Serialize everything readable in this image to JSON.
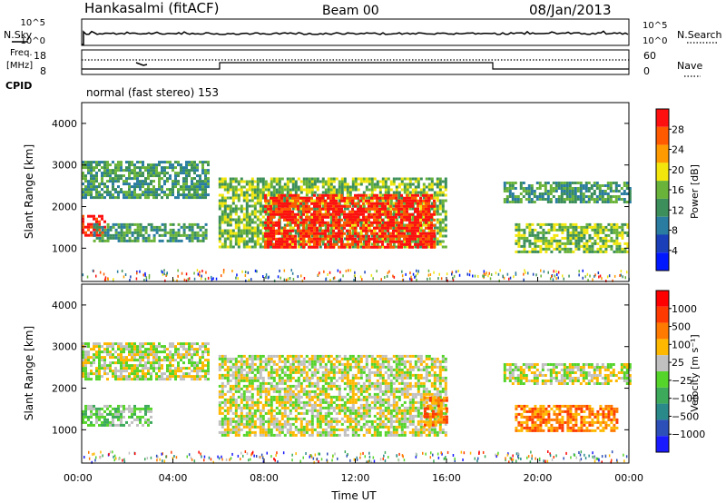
{
  "header": {
    "station": "Hankasalmi (fitACF)",
    "beam": "Beam 00",
    "date": "08/Jan/2013"
  },
  "status_panels": {
    "nsky_label": "N.Sky",
    "nsearch_label": "N.Search",
    "noise_ticks": [
      "10^5",
      "10^0"
    ],
    "freq_label_line1": "Freq.",
    "freq_label_line2": "[MHz]",
    "freq_ticks": [
      "18",
      "8"
    ],
    "nave_label": "Nave",
    "nave_ticks": [
      "60",
      "0"
    ],
    "cpid_label": "CPID",
    "cpid_text": "normal (fast stereo) 153"
  },
  "colors": {
    "power": [
      "#0018ff",
      "#1a3fb8",
      "#2a7da0",
      "#3c8f5a",
      "#6ab33a",
      "#f2e60c",
      "#ff9a00",
      "#ff5a00",
      "#ff1010"
    ],
    "velocity": [
      "#1a1aff",
      "#2c4fb8",
      "#2a8a8a",
      "#3caa5a",
      "#55d42a",
      "#c0c0c0",
      "#ffb800",
      "#ff7a00",
      "#ff3a00",
      "#ff0000"
    ]
  },
  "chart_data": [
    {
      "type": "heatmap",
      "name_panel": "power",
      "ylabel": "Slant Range [km]",
      "ylim": [
        200,
        4500
      ],
      "yticks": [
        1000,
        2000,
        3000,
        4000
      ],
      "xlim": [
        0,
        24
      ],
      "colorbar_label": "Power [dB]",
      "colorbar_ticks": [
        "28",
        "24",
        "20",
        "16",
        "12",
        "8",
        "4"
      ],
      "echo_regions": [
        {
          "t0": 0.0,
          "t1": 5.5,
          "r0": 2200,
          "r1": 3100,
          "level": 3
        },
        {
          "t0": 0.0,
          "t1": 1.0,
          "r0": 1300,
          "r1": 1800,
          "level": 8
        },
        {
          "t0": 0.5,
          "t1": 5.5,
          "r0": 1200,
          "r1": 1600,
          "level": 3
        },
        {
          "t0": 6.0,
          "t1": 16.0,
          "r0": 1000,
          "r1": 2700,
          "level": 4
        },
        {
          "t0": 8.0,
          "t1": 15.5,
          "r0": 1000,
          "r1": 2300,
          "level": 8
        },
        {
          "t0": 18.5,
          "t1": 24.0,
          "r0": 2100,
          "r1": 2600,
          "level": 3
        },
        {
          "t0": 19.0,
          "t1": 24.0,
          "r0": 900,
          "r1": 1600,
          "level": 4
        }
      ]
    },
    {
      "type": "heatmap",
      "name_panel": "velocity",
      "ylabel": "Slant Range [km]",
      "ylim": [
        200,
        4500
      ],
      "yticks": [
        1000,
        2000,
        3000,
        4000
      ],
      "xlim": [
        0,
        24
      ],
      "xticks": [
        "00:00",
        "04:00",
        "08:00",
        "12:00",
        "16:00",
        "20:00",
        "00:00"
      ],
      "xlabel": "Time UT",
      "colorbar_label": "Velocity [m s⁻¹]",
      "colorbar_ticks": [
        "1000",
        "500",
        "100",
        "25",
        "−25",
        "−100",
        "−500",
        "−1000"
      ],
      "echo_regions": [
        {
          "t0": 0.0,
          "t1": 5.5,
          "r0": 2200,
          "r1": 3100,
          "level": 5
        },
        {
          "t0": 0.0,
          "t1": 3.0,
          "r0": 1100,
          "r1": 1600,
          "level": 4
        },
        {
          "t0": 6.0,
          "t1": 16.0,
          "r0": 900,
          "r1": 2800,
          "level": 5
        },
        {
          "t0": 15.0,
          "t1": 16.0,
          "r0": 1100,
          "r1": 1800,
          "level": 7
        },
        {
          "t0": 18.5,
          "t1": 24.0,
          "r0": 2100,
          "r1": 2600,
          "level": 5
        },
        {
          "t0": 19.0,
          "t1": 23.5,
          "r0": 1000,
          "r1": 1600,
          "level": 7
        }
      ]
    }
  ]
}
